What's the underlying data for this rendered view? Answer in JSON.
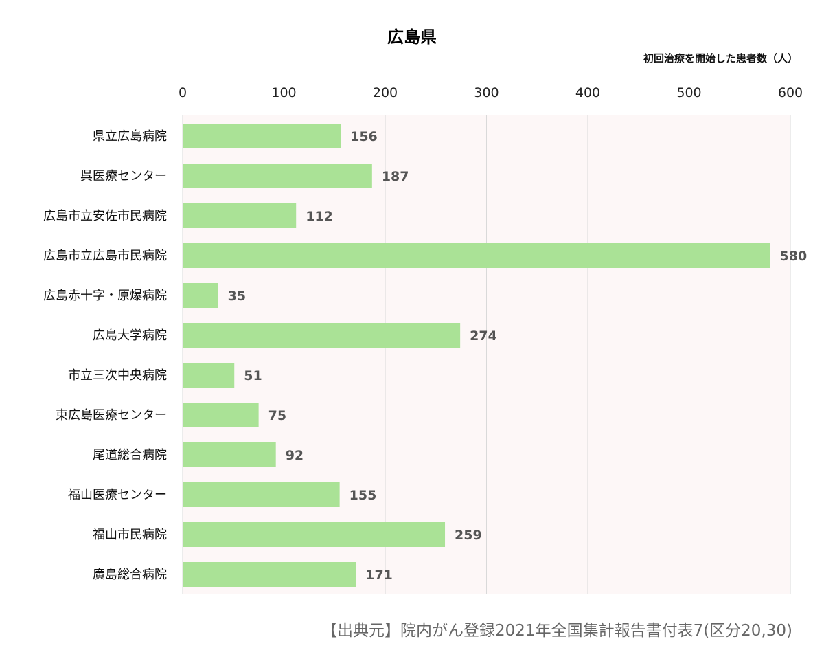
{
  "chart_data": {
    "type": "bar",
    "orientation": "horizontal",
    "title": "広島県",
    "unit_label": "初回治療を開始した患者数（人）",
    "source": "【出典元】院内がん登録2021年全国集計報告書付表7(区分20,30)",
    "categories": [
      "県立広島病院",
      "呉医療センター",
      "広島市立安佐市民病院",
      "広島市立広島市民病院",
      "広島赤十字・原爆病院",
      "広島大学病院",
      "市立三次中央病院",
      "東広島医療センター",
      "尾道総合病院",
      "福山医療センター",
      "福山市民病院",
      "廣島総合病院"
    ],
    "values": [
      156,
      187,
      112,
      580,
      35,
      274,
      51,
      75,
      92,
      155,
      259,
      171
    ],
    "xlim": [
      0,
      600
    ],
    "xticks": [
      0,
      100,
      200,
      300,
      400,
      500,
      600
    ],
    "axis_position": "top",
    "grid": true,
    "legend": "none",
    "colors": {
      "bar": "#aae296",
      "plot_background": "#fdf7f7",
      "gridline": "#d9d9d9",
      "value_label": "#555555"
    }
  }
}
